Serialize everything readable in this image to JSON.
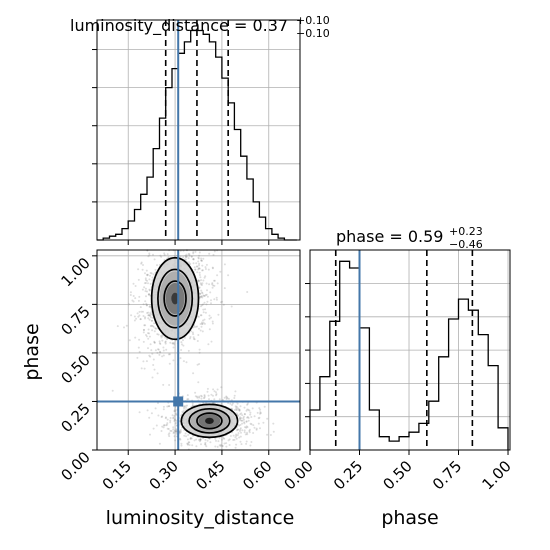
{
  "chart_data": {
    "type": "corner",
    "parameters": [
      "luminosity_distance",
      "phase"
    ],
    "truth": {
      "luminosity_distance": 0.31,
      "phase": 0.25
    },
    "quantiles": {
      "luminosity_distance": [
        0.27,
        0.37,
        0.47
      ],
      "phase": [
        0.13,
        0.59,
        0.82
      ]
    },
    "panels": [
      {
        "id": "hist-luminosity_distance",
        "type": "histogram",
        "title": {
          "main": "luminosity_distance = 0.37",
          "sup": "+0.10",
          "sub": "−0.10"
        },
        "xlim": [
          0.05,
          0.7
        ],
        "bin_edges": [
          0.05,
          0.07,
          0.09,
          0.11,
          0.13,
          0.15,
          0.17,
          0.19,
          0.21,
          0.23,
          0.25,
          0.27,
          0.29,
          0.31,
          0.33,
          0.35,
          0.37,
          0.39,
          0.41,
          0.43,
          0.45,
          0.47,
          0.49,
          0.51,
          0.53,
          0.55,
          0.57,
          0.59,
          0.61,
          0.63,
          0.65,
          0.67,
          0.69
        ],
        "counts": [
          0,
          1,
          2,
          3,
          6,
          10,
          16,
          24,
          33,
          48,
          64,
          80,
          90,
          98,
          104,
          110,
          110,
          108,
          104,
          96,
          85,
          72,
          58,
          44,
          32,
          20,
          12,
          6,
          3,
          1,
          0,
          0
        ]
      },
      {
        "id": "scatter-luminosity_distance-phase",
        "type": "contour-2d",
        "xlim": [
          0.05,
          0.7
        ],
        "ylim": [
          0.0,
          1.03
        ],
        "modes": [
          {
            "x_center": 0.3,
            "y_center": 0.78
          },
          {
            "x_center": 0.41,
            "y_center": 0.15
          }
        ]
      },
      {
        "id": "hist-phase",
        "type": "histogram",
        "title": {
          "main": "phase = 0.59",
          "sup": "+0.23",
          "sub": "−0.46"
        },
        "xlim": [
          0.0,
          1.01
        ],
        "bin_edges": [
          0.0,
          0.025,
          0.05,
          0.075,
          0.1,
          0.125,
          0.15,
          0.175,
          0.2,
          0.225,
          0.25,
          0.275,
          0.3,
          0.325,
          0.35,
          0.375,
          0.4,
          0.425,
          0.45,
          0.475,
          0.5,
          0.525,
          0.55,
          0.575,
          0.6,
          0.625,
          0.65,
          0.675,
          0.7,
          0.725,
          0.75,
          0.775,
          0.8,
          0.825,
          0.85,
          0.875,
          0.9,
          0.925,
          0.95,
          0.975,
          1.0
        ],
        "counts": [
          18,
          18,
          33,
          33,
          58,
          58,
          85,
          85,
          82,
          82,
          55,
          55,
          18,
          18,
          6,
          6,
          4,
          4,
          6,
          6,
          8,
          8,
          12,
          12,
          22,
          22,
          42,
          42,
          59,
          59,
          68,
          68,
          63,
          63,
          52,
          52,
          38,
          38,
          10,
          10
        ]
      }
    ],
    "ticks": {
      "luminosity_distance": [
        "0.15",
        "0.30",
        "0.45",
        "0.60"
      ],
      "phase_y": [
        "0.00",
        "0.25",
        "0.50",
        "0.75",
        "1.00"
      ],
      "phase_x": [
        "0.00",
        "0.25",
        "0.50",
        "0.75",
        "1.00"
      ]
    },
    "axis_labels": {
      "x_left": "luminosity_distance",
      "x_right": "phase",
      "y_left": "phase"
    },
    "colors": {
      "truth": "#4477aa",
      "line": "#000000",
      "grid": "#b0b0b0"
    },
    "grid": true
  }
}
